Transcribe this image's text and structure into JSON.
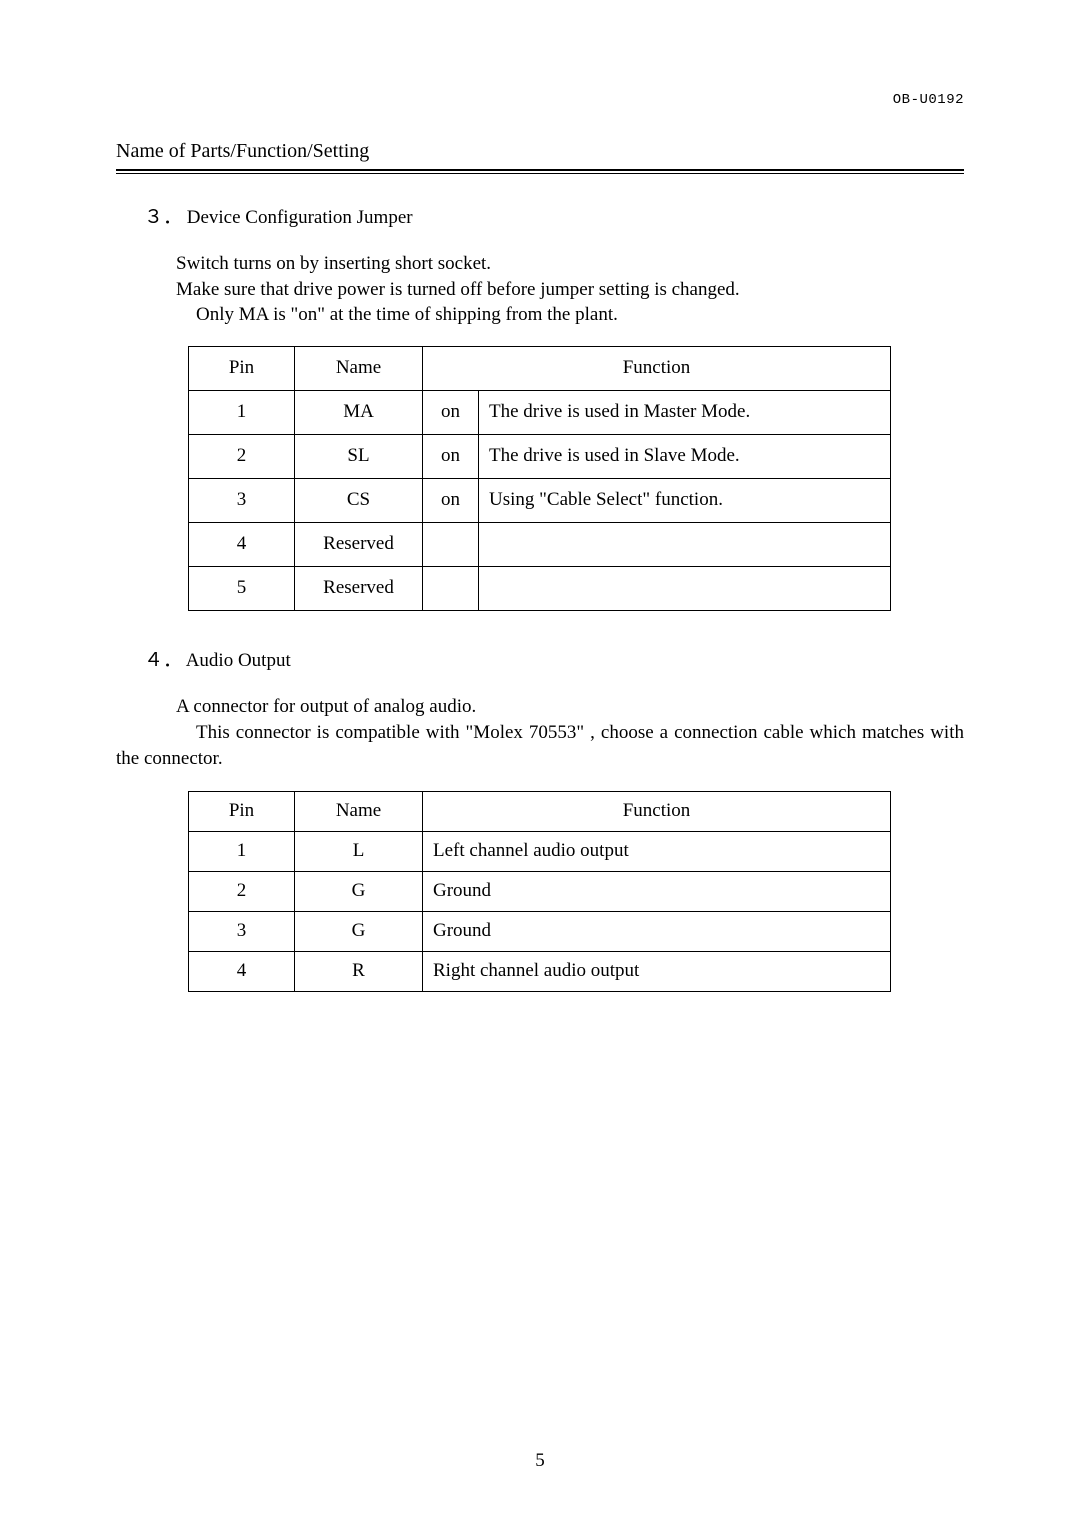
{
  "doc_code": "OB-U0192",
  "page_title": "Name of Parts/Function/Setting",
  "page_number": "5",
  "section3": {
    "heading": "３． Device Configuration Jumper",
    "line1": "Switch turns on by inserting short socket.",
    "line2": "Make sure that drive power is turned off before jumper setting is changed.",
    "line3": "Only MA is  \"on\"  at the time of shipping from the plant.",
    "headers": {
      "pin": "Pin",
      "name": "Name",
      "function": "Function"
    },
    "rows": [
      {
        "pin": "1",
        "name": "MA",
        "state": "on",
        "function": "The drive is used in Master Mode."
      },
      {
        "pin": "2",
        "name": "SL",
        "state": "on",
        "function": "The drive is used in Slave Mode."
      },
      {
        "pin": "3",
        "name": "CS",
        "state": "on",
        "function": "Using  \"Cable Select\"  function."
      },
      {
        "pin": "4",
        "name": "Reserved",
        "state": "",
        "function": ""
      },
      {
        "pin": "5",
        "name": "Reserved",
        "state": "",
        "function": ""
      }
    ]
  },
  "section4": {
    "heading": "４． Audio Output",
    "line1": "A connector for output of analog audio.",
    "line2": "This connector is compatible with  \"Molex 70553\" , choose a connection cable which matches with the connector.",
    "headers": {
      "pin": "Pin",
      "name": "Name",
      "function": "Function"
    },
    "rows": [
      {
        "pin": "1",
        "name": "L",
        "function": "Left channel audio output"
      },
      {
        "pin": "2",
        "name": "G",
        "function": "Ground"
      },
      {
        "pin": "3",
        "name": "G",
        "function": "Ground"
      },
      {
        "pin": "4",
        "name": "R",
        "function": "Right channel audio output"
      }
    ]
  }
}
